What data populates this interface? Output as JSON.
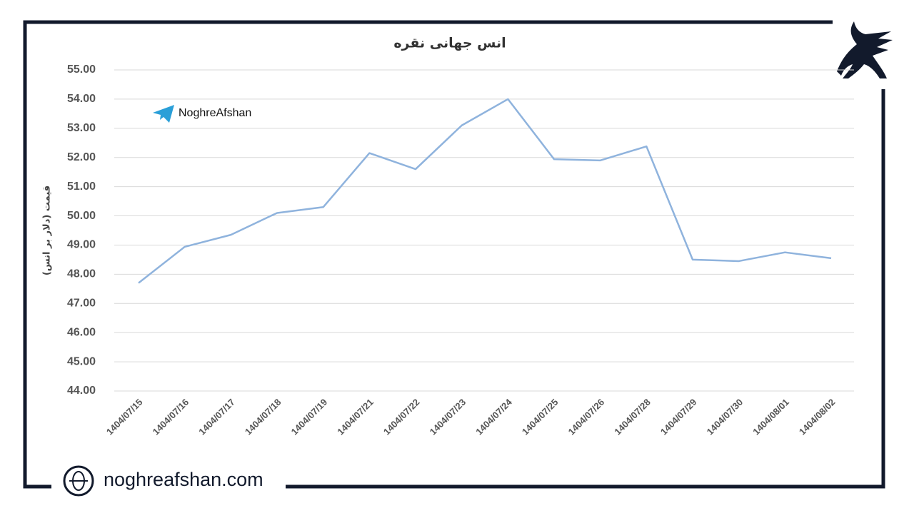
{
  "chart_data": {
    "type": "line",
    "title": "انس جهانی نقره",
    "y_label": "قیمت (دلار بر انس)",
    "categories": [
      "1404/07/15",
      "1404/07/16",
      "1404/07/17",
      "1404/07/18",
      "1404/07/19",
      "1404/07/21",
      "1404/07/22",
      "1404/07/23",
      "1404/07/24",
      "1404/07/25",
      "1404/07/26",
      "1404/07/28",
      "1404/07/29",
      "1404/07/30",
      "1404/08/01",
      "1404/08/02"
    ],
    "series": [
      {
        "name": "انس جهانی نقره",
        "color": "#8fb3dd",
        "values": [
          47.7,
          48.94,
          49.35,
          50.1,
          50.3,
          52.15,
          51.6,
          53.1,
          54.0,
          51.94,
          51.9,
          52.38,
          48.5,
          48.45,
          48.75,
          48.55
        ]
      }
    ],
    "ylim": [
      44,
      55
    ],
    "yticks": [
      {
        "value": 44,
        "label": "44.00"
      },
      {
        "value": 45,
        "label": "45.00"
      },
      {
        "value": 46,
        "label": "46.00"
      },
      {
        "value": 47,
        "label": "47.00"
      },
      {
        "value": 48,
        "label": "48.00"
      },
      {
        "value": 49,
        "label": "49.00"
      },
      {
        "value": 50,
        "label": "50.00"
      },
      {
        "value": 51,
        "label": "51.00"
      },
      {
        "value": 52,
        "label": "52.00"
      },
      {
        "value": 53,
        "label": "53.00"
      },
      {
        "value": 54,
        "label": "54.00"
      },
      {
        "value": 55,
        "label": "55.00"
      }
    ],
    "grid": true
  },
  "branding": {
    "telegram": "NoghreAfshan",
    "website": "noghreafshan.com"
  }
}
